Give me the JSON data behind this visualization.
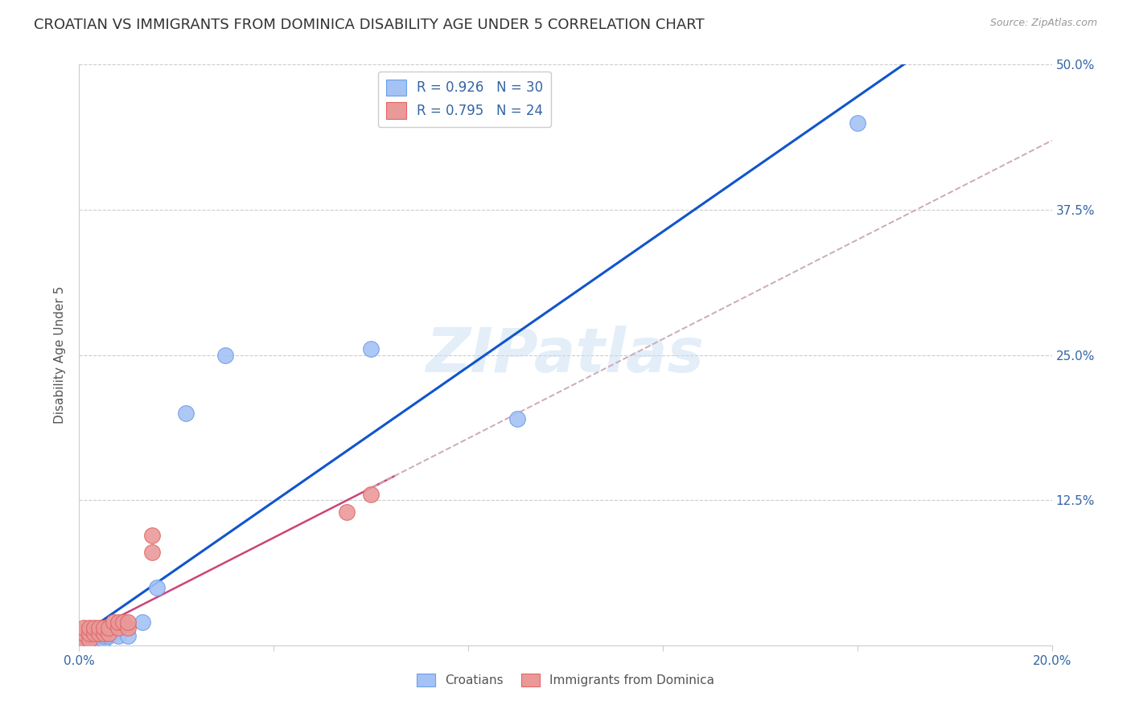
{
  "title": "CROATIAN VS IMMIGRANTS FROM DOMINICA DISABILITY AGE UNDER 5 CORRELATION CHART",
  "source": "Source: ZipAtlas.com",
  "ylabel": "Disability Age Under 5",
  "watermark": "ZIPatlas",
  "legend_r1": "R = 0.926",
  "legend_n1": "N = 30",
  "legend_r2": "R = 0.795",
  "legend_n2": "N = 24",
  "croatian_color": "#a4c2f4",
  "croatian_edge_color": "#6d9eeb",
  "dominica_color": "#ea9999",
  "dominica_edge_color": "#e06666",
  "croatian_line_color": "#1155cc",
  "dominica_line_color": "#cc4477",
  "dominica_dash_color": "#ccaabb",
  "x_tick_positions": [
    0.0,
    0.04,
    0.08,
    0.12,
    0.16,
    0.2
  ],
  "x_tick_labels": [
    "0.0%",
    "",
    "",
    "",
    "",
    "20.0%"
  ],
  "y_tick_positions": [
    0.0,
    0.125,
    0.25,
    0.375,
    0.5
  ],
  "y_tick_labels_right": [
    "",
    "12.5%",
    "25.0%",
    "37.5%",
    "50.0%"
  ],
  "croatian_x": [
    0.001,
    0.001,
    0.001,
    0.002,
    0.002,
    0.002,
    0.002,
    0.003,
    0.003,
    0.003,
    0.003,
    0.004,
    0.004,
    0.004,
    0.005,
    0.005,
    0.005,
    0.006,
    0.006,
    0.007,
    0.008,
    0.009,
    0.01,
    0.012,
    0.016,
    0.022,
    0.03,
    0.06,
    0.09,
    0.16
  ],
  "croatian_y": [
    0.005,
    0.008,
    0.01,
    0.005,
    0.008,
    0.01,
    0.012,
    0.005,
    0.008,
    0.01,
    0.012,
    0.005,
    0.008,
    0.01,
    0.005,
    0.008,
    0.012,
    0.008,
    0.01,
    0.01,
    0.01,
    0.01,
    0.008,
    0.02,
    0.05,
    0.2,
    0.25,
    0.255,
    0.195,
    0.45
  ],
  "dominica_x": [
    0.001,
    0.001,
    0.001,
    0.002,
    0.002,
    0.002,
    0.002,
    0.003,
    0.003,
    0.003,
    0.003,
    0.004,
    0.004,
    0.005,
    0.005,
    0.006,
    0.006,
    0.007,
    0.008,
    0.009,
    0.015,
    0.02,
    0.06,
    0.06
  ],
  "dominica_y": [
    0.005,
    0.01,
    0.015,
    0.005,
    0.008,
    0.01,
    0.015,
    0.005,
    0.01,
    0.015,
    0.02,
    0.015,
    0.02,
    0.01,
    0.015,
    0.01,
    0.015,
    0.02,
    0.02,
    0.025,
    0.095,
    0.1,
    0.11,
    0.13
  ],
  "background_color": "#ffffff",
  "grid_color": "#cccccc",
  "title_fontsize": 13,
  "axis_label_fontsize": 11,
  "tick_fontsize": 11,
  "legend_fontsize": 12
}
